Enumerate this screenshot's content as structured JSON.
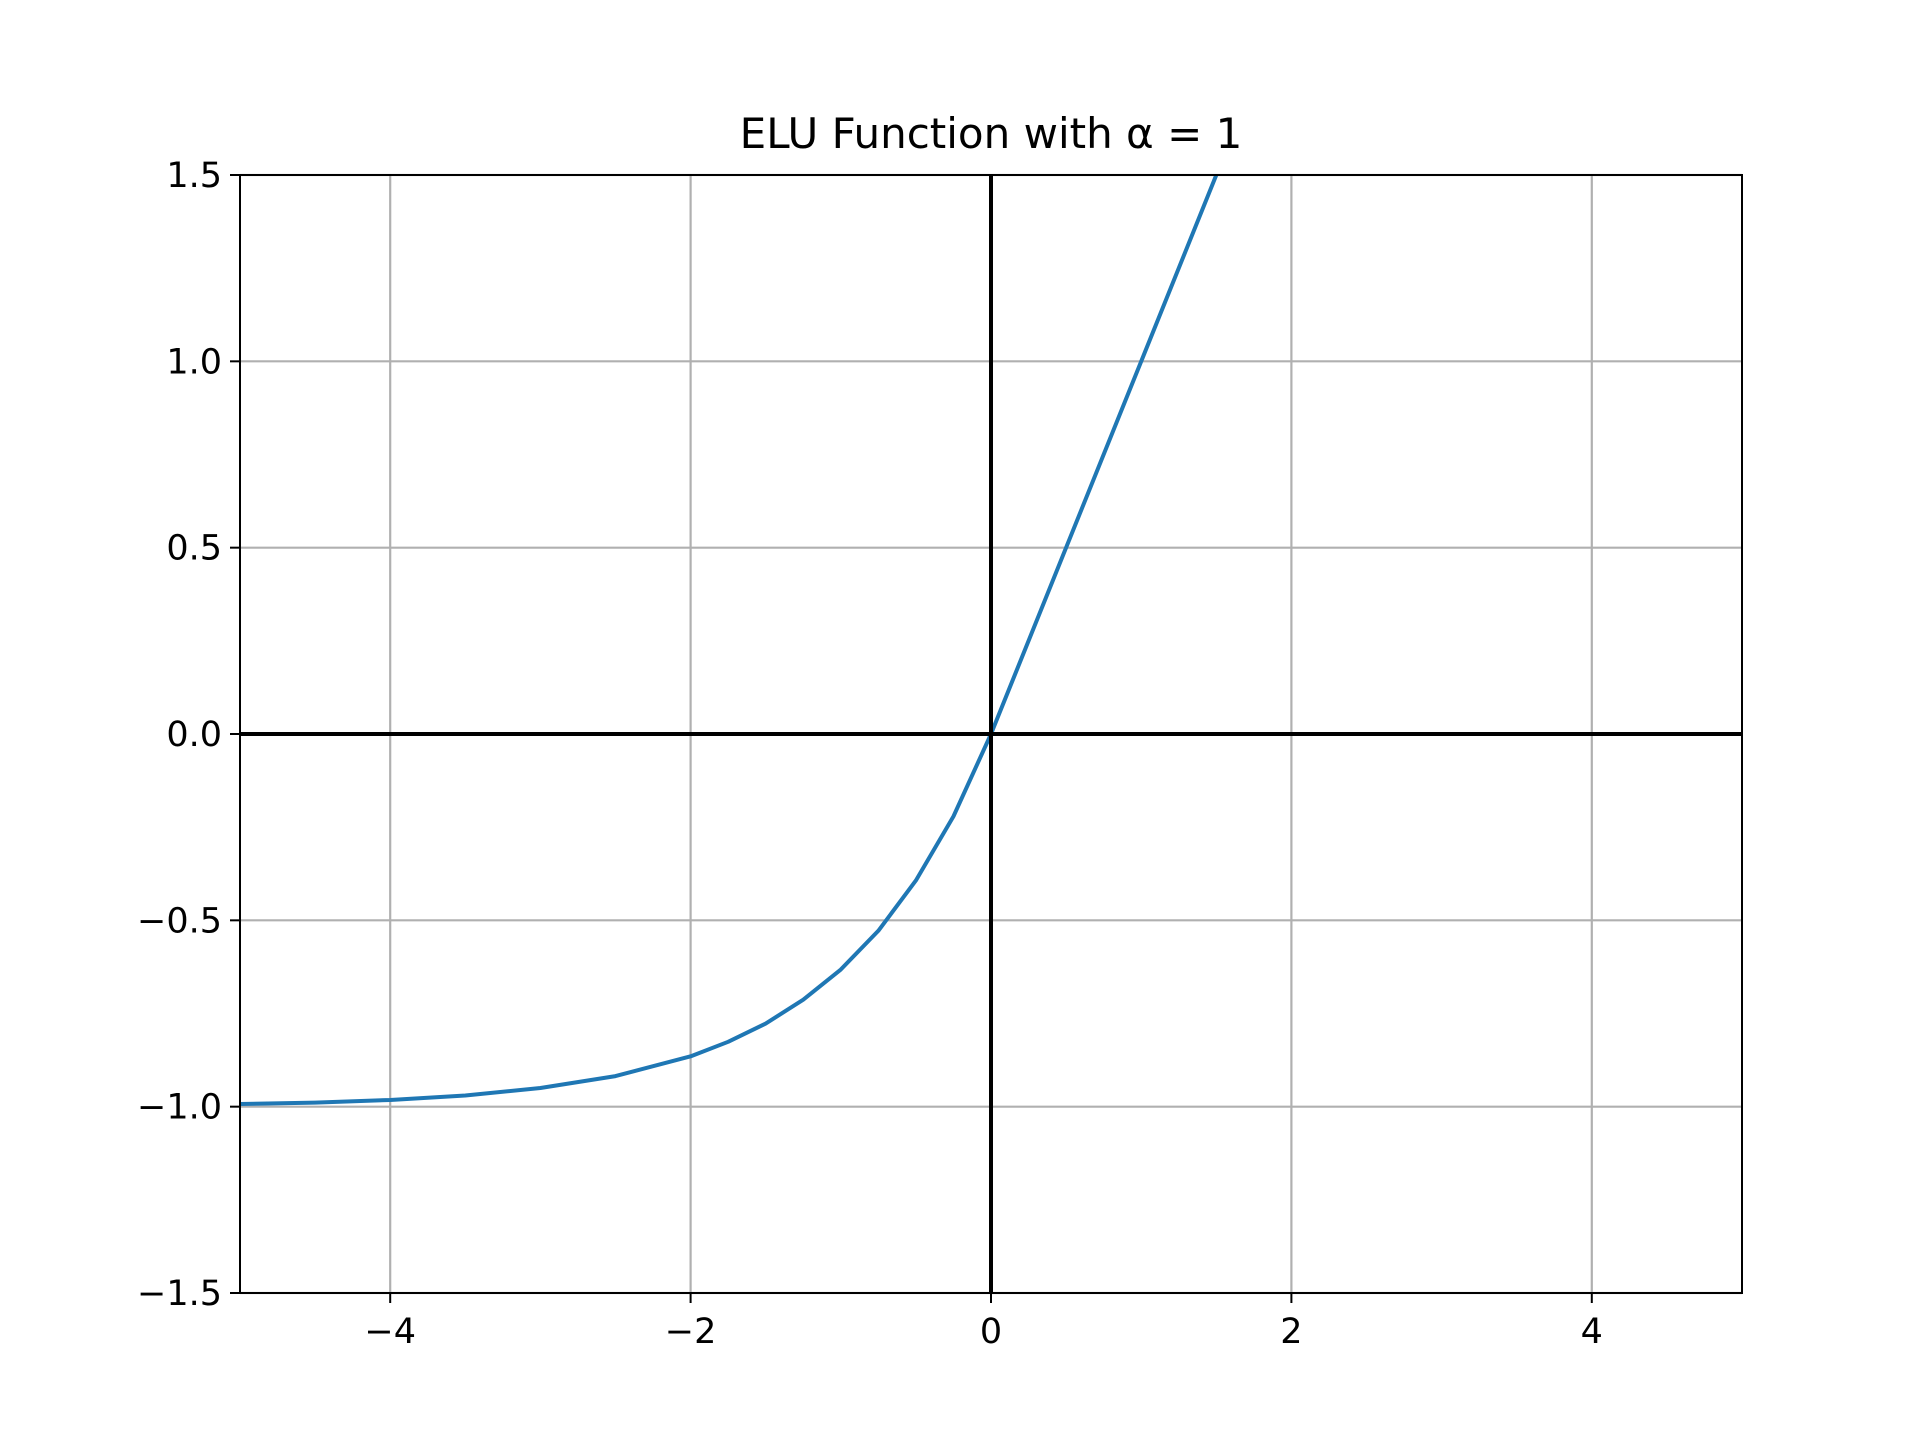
{
  "chart_data": {
    "type": "line",
    "title": "ELU Function with α = 1",
    "xlabel": "",
    "ylabel": "",
    "xlim": [
      -5,
      5
    ],
    "ylim": [
      -1.5,
      1.5
    ],
    "grid": true,
    "xticks": [
      -4,
      -2,
      0,
      2,
      4
    ],
    "xtick_labels": [
      "−4",
      "−2",
      "0",
      "2",
      "4"
    ],
    "yticks": [
      -1.5,
      -1.0,
      -0.5,
      0.0,
      0.5,
      1.0,
      1.5
    ],
    "ytick_labels": [
      "−1.5",
      "−1.0",
      "−0.5",
      "0.0",
      "0.5",
      "1.0",
      "1.5"
    ],
    "reference_lines": {
      "x": 0,
      "y": 0,
      "color": "#000000"
    },
    "series": [
      {
        "color": "#1f77b4",
        "x": [
          -5,
          -4.5,
          -4,
          -3.5,
          -3,
          -2.5,
          -2,
          -1.75,
          -1.5,
          -1.25,
          -1,
          -0.75,
          -0.5,
          -0.25,
          0,
          0.5,
          1,
          1.5
        ],
        "y": [
          -0.993,
          -0.989,
          -0.982,
          -0.97,
          -0.95,
          -0.918,
          -0.865,
          -0.826,
          -0.777,
          -0.713,
          -0.632,
          -0.528,
          -0.393,
          -0.221,
          0.0,
          0.5,
          1.0,
          1.5
        ]
      }
    ]
  }
}
